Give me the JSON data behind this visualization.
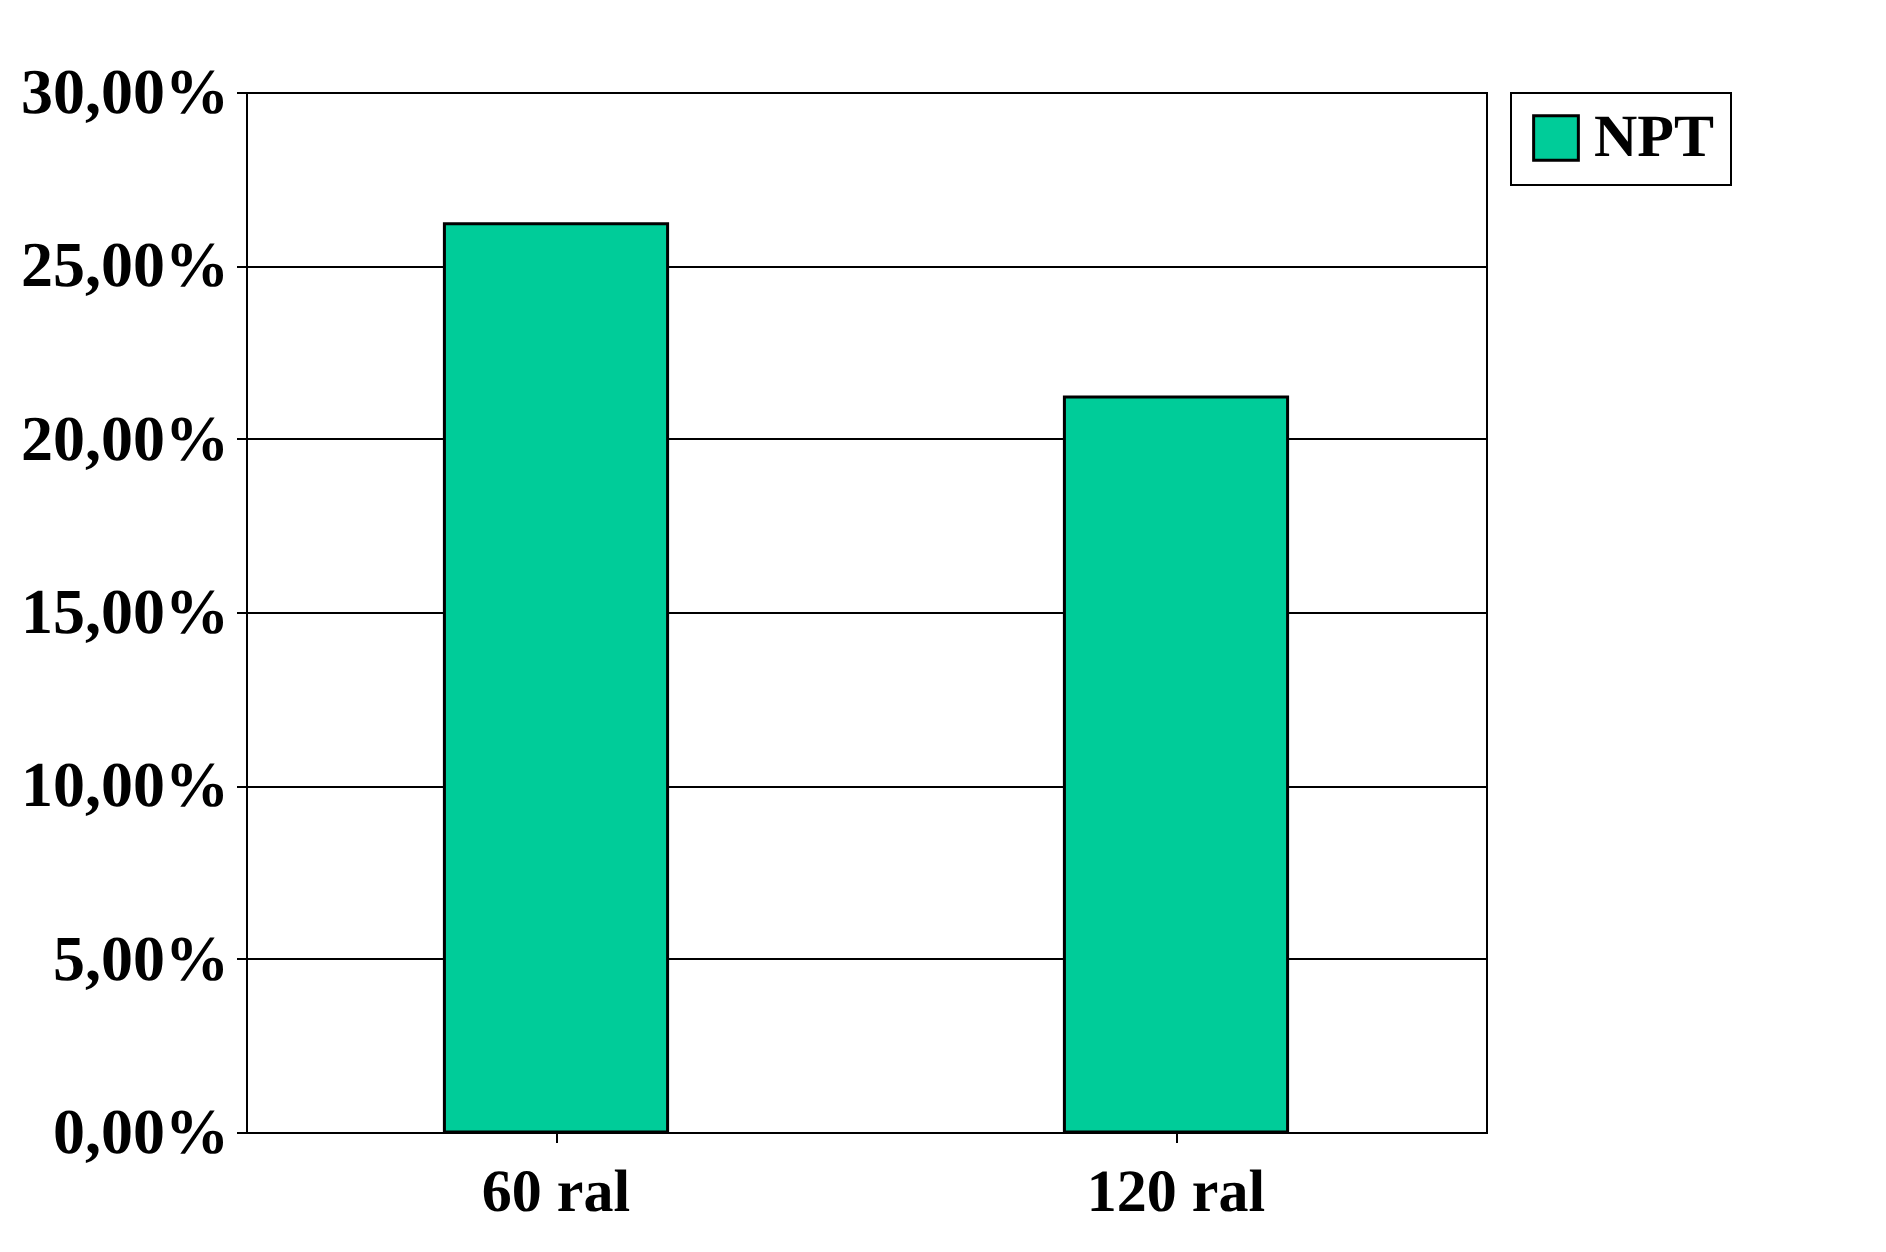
{
  "chart_data": {
    "type": "bar",
    "categories": [
      "60 ral",
      "120 ral"
    ],
    "series": [
      {
        "name": "NPT",
        "color": "#00cc99",
        "values": [
          26.2,
          21.2
        ]
      }
    ],
    "ylim": [
      0,
      30
    ],
    "yticks": [
      {
        "value": 0,
        "label": "0,00%"
      },
      {
        "value": 5,
        "label": "5,00%"
      },
      {
        "value": 10,
        "label": "10,00%"
      },
      {
        "value": 15,
        "label": "15,00%"
      },
      {
        "value": 20,
        "label": "20,00%"
      },
      {
        "value": 25,
        "label": "25,00%"
      },
      {
        "value": 30,
        "label": "30,00%"
      }
    ],
    "grid": "y",
    "legend": "right"
  }
}
